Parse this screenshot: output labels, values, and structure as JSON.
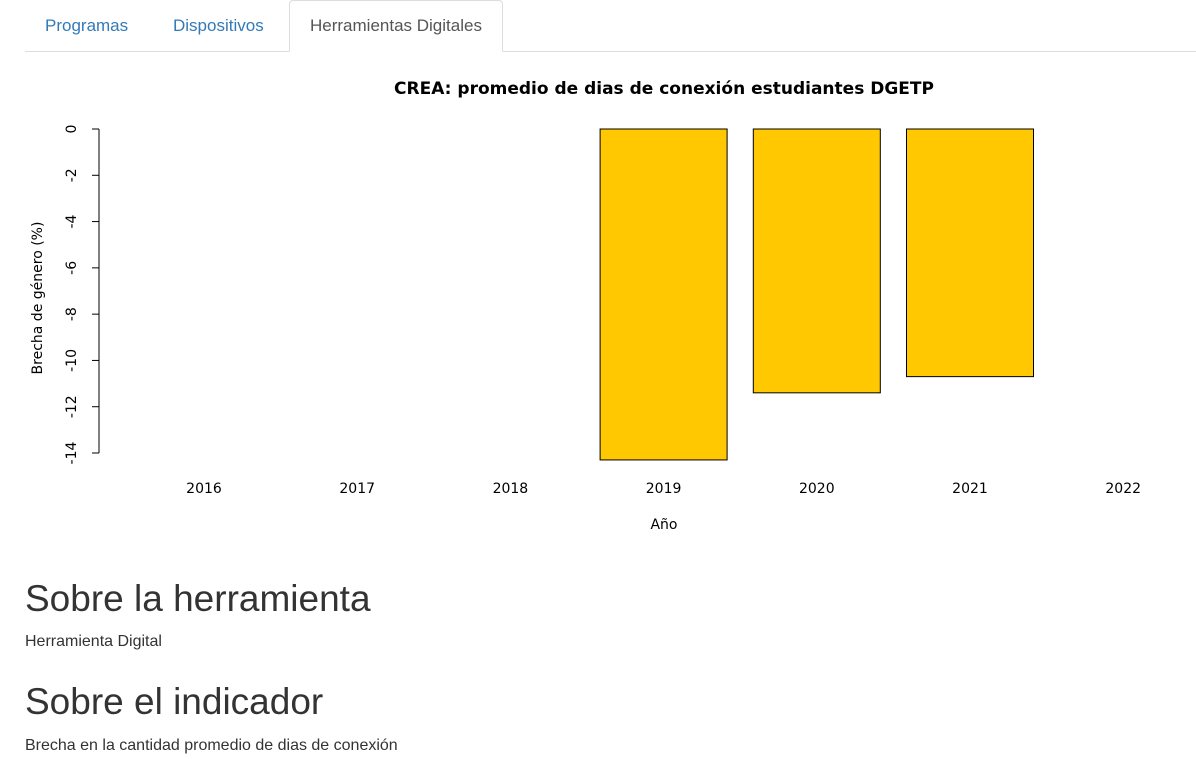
{
  "tabs": [
    {
      "label": "Programas",
      "active": false
    },
    {
      "label": "Dispositivos",
      "active": false
    },
    {
      "label": "Herramientas Digitales",
      "active": true
    }
  ],
  "chart_data": {
    "type": "bar",
    "title": "CREA: promedio de dias de conexión estudiantes DGETP",
    "xlabel": "Año",
    "ylabel": "Brecha de género (%)",
    "categories": [
      "2016",
      "2017",
      "2018",
      "2019",
      "2020",
      "2021",
      "2022"
    ],
    "values": [
      null,
      null,
      null,
      -14.3,
      -11.4,
      -10.7,
      null
    ],
    "ylim": [
      -14,
      0
    ],
    "yticks": [
      "0",
      "-2",
      "-4",
      "-6",
      "-8",
      "-10",
      "-12",
      "-14"
    ],
    "bar_color": "#FFC800",
    "grid": false
  },
  "sections": [
    {
      "heading": "Sobre la herramienta",
      "text": "Herramienta Digital"
    },
    {
      "heading": "Sobre el indicador",
      "text": "Brecha en la cantidad promedio de dias de conexión"
    }
  ]
}
